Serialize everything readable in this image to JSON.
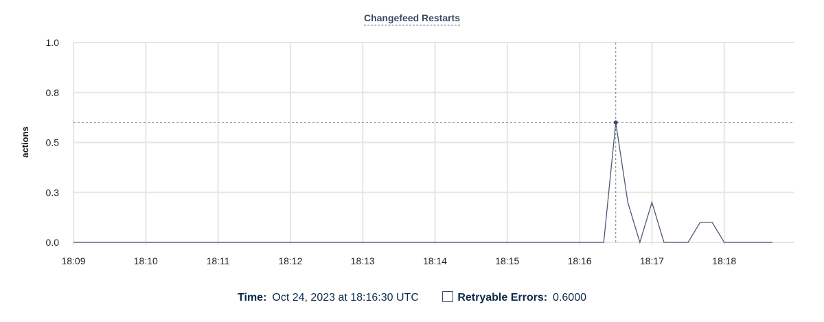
{
  "chart_data": {
    "type": "line",
    "title": "Changefeed Restarts",
    "ylabel": "actions",
    "xlabel": "",
    "ylim": [
      0,
      1.0
    ],
    "yticks": [
      0,
      0.25,
      0.5,
      0.75,
      1.0
    ],
    "ytick_labels": [
      "0.0",
      "0.3",
      "0.5",
      "0.8",
      "1.0"
    ],
    "xlim": [
      "18:09:00",
      "18:19:00"
    ],
    "xtick_labels": [
      "18:09",
      "18:10",
      "18:11",
      "18:12",
      "18:13",
      "18:14",
      "18:15",
      "18:16",
      "18:17",
      "18:18"
    ],
    "grid": true,
    "series": [
      {
        "name": "Retryable Errors",
        "color": "#4a5a75",
        "x": [
          "18:09:00",
          "18:16:20",
          "18:16:30",
          "18:16:40",
          "18:16:50",
          "18:17:00",
          "18:17:10",
          "18:17:30",
          "18:17:40",
          "18:17:50",
          "18:18:00",
          "18:18:40"
        ],
        "y": [
          0,
          0,
          0.6,
          0.2,
          0,
          0.2,
          0,
          0,
          0.1,
          0.1,
          0,
          0
        ]
      }
    ],
    "hover": {
      "x": "18:16:30",
      "y": 0.6
    }
  },
  "legend": {
    "time_label": "Time:",
    "time_value": "Oct 24, 2023 at 18:16:30 UTC",
    "series_label": "Retryable Errors:",
    "series_value": "0.6000"
  }
}
